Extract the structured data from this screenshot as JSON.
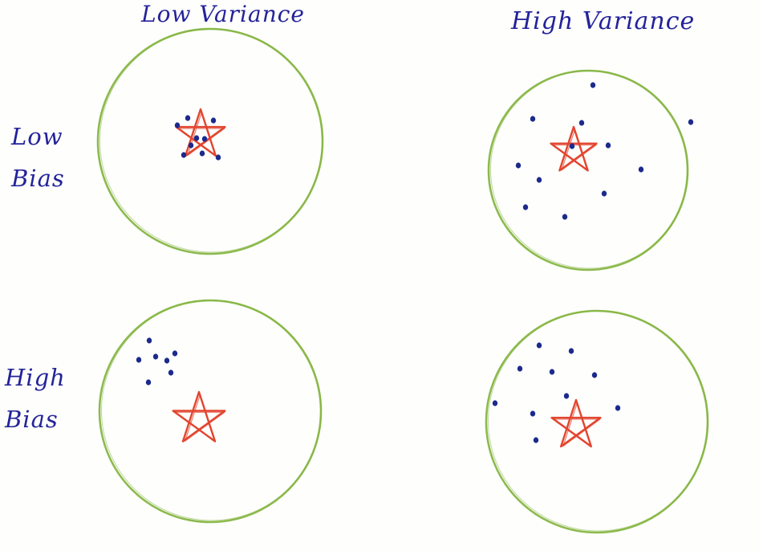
{
  "column_headers": {
    "low_variance": "Low Variance",
    "high_variance": "High Variance"
  },
  "row_labels": {
    "low_bias": [
      "Low",
      "Bias"
    ],
    "high_bias": [
      "High",
      "Bias"
    ]
  },
  "colors": {
    "target_ring": "#7fb23a",
    "star": "#e2452f",
    "shot": "#1c2a8c",
    "ink": "#23239a"
  },
  "panels": [
    {
      "bias": "Low",
      "variance": "Low"
    },
    {
      "bias": "Low",
      "variance": "High"
    },
    {
      "bias": "High",
      "variance": "Low"
    },
    {
      "bias": "High",
      "variance": "High"
    }
  ]
}
